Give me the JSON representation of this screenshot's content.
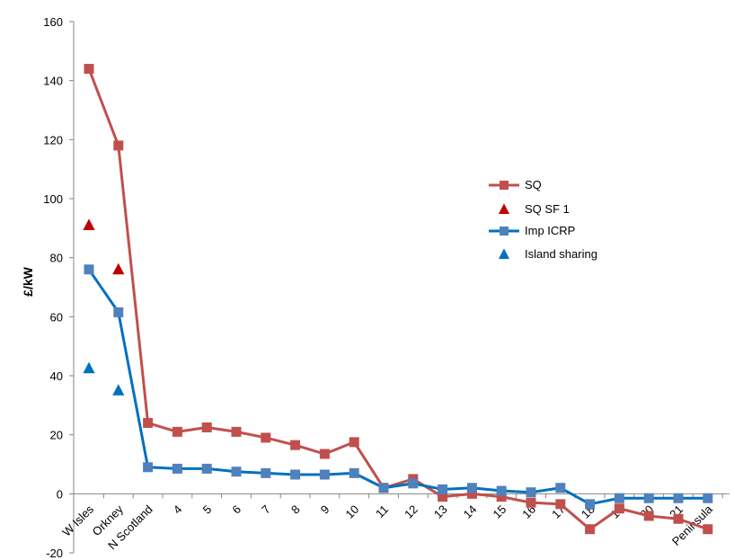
{
  "chart_data": {
    "type": "line",
    "title": "",
    "xlabel": "",
    "ylabel": "£/kW",
    "ylim": [
      -20,
      160
    ],
    "yticks": [
      -20,
      0,
      20,
      40,
      60,
      80,
      100,
      120,
      140,
      160
    ],
    "grid": false,
    "legend_position": "center-right",
    "categories": [
      "W Isles",
      "Orkney",
      "N Scotland",
      "4",
      "5",
      "6",
      "7",
      "8",
      "9",
      "10",
      "11",
      "12",
      "13",
      "14",
      "15",
      "16",
      "17",
      "18",
      "19",
      "20",
      "21",
      "Peninsula"
    ],
    "series": [
      {
        "name": "SQ",
        "kind": "line-square",
        "color": "#c0504d",
        "values": [
          144,
          118,
          24,
          21,
          22.5,
          21,
          19,
          16.5,
          13.5,
          17.5,
          2,
          5,
          -1,
          0,
          -1,
          -3,
          -3.5,
          -12,
          -5,
          -7.5,
          -8.5,
          -12
        ]
      },
      {
        "name": "SQ SF 1",
        "kind": "triangle",
        "color": "#c00000",
        "values": [
          91,
          76,
          null,
          null,
          null,
          null,
          null,
          null,
          null,
          null,
          null,
          null,
          null,
          null,
          null,
          null,
          null,
          null,
          null,
          null,
          null,
          null
        ]
      },
      {
        "name": "Imp ICRP",
        "kind": "line-square",
        "color": "#4f81bd",
        "line_color": "#0070c0",
        "values": [
          76,
          61.5,
          9,
          8.5,
          8.5,
          7.5,
          7,
          6.5,
          6.5,
          7,
          2,
          3.5,
          1.5,
          2,
          1,
          0.5,
          2,
          -3.5,
          -1.5,
          -1.5,
          -1.5,
          -1.5
        ]
      },
      {
        "name": "Island sharing",
        "kind": "triangle",
        "color": "#0070c0",
        "values": [
          42.5,
          35,
          null,
          null,
          null,
          null,
          null,
          null,
          null,
          null,
          null,
          null,
          null,
          null,
          null,
          null,
          null,
          null,
          null,
          null,
          null,
          null
        ]
      }
    ]
  }
}
